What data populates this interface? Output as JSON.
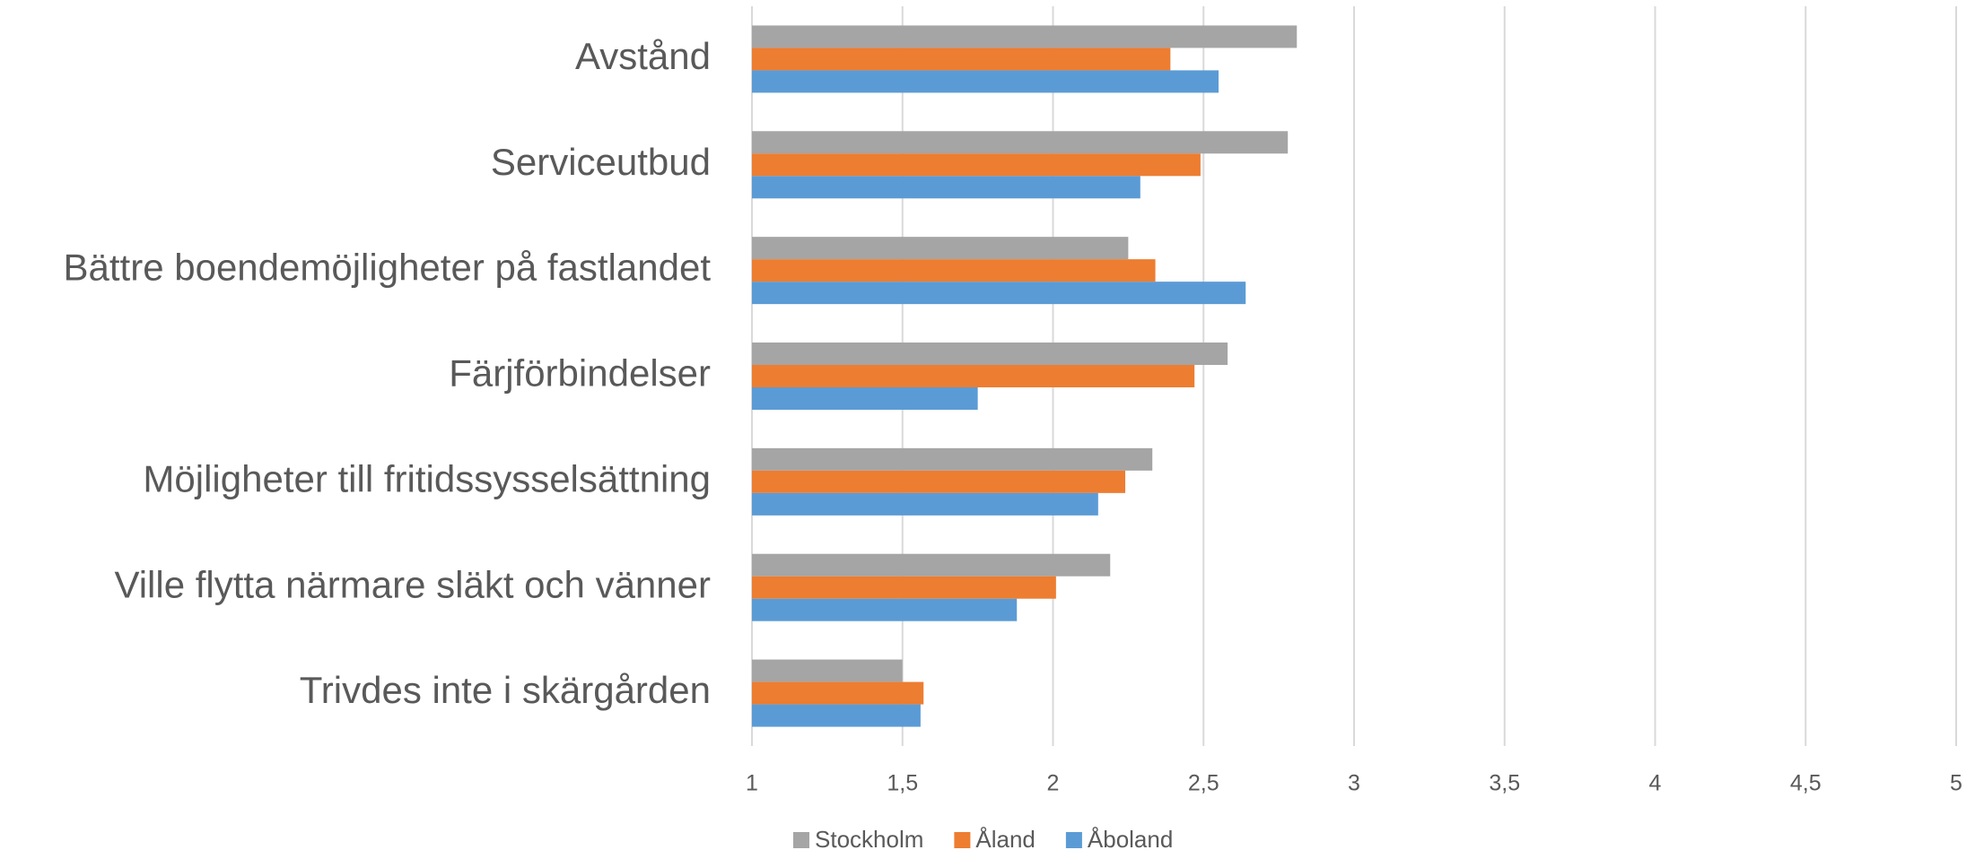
{
  "chart_data": {
    "type": "hbar",
    "categories": [
      "Avstånd",
      "Serviceutbud",
      "Bättre boendemöjligheter på fastlandet",
      "Färjförbindelser",
      "Möjligheter till fritidssysselsättning",
      "Ville flytta närmare släkt och vänner",
      "Trivdes inte i skärgården"
    ],
    "series": [
      {
        "name": "Stockholm",
        "color": "#a5a5a5",
        "values": [
          2.81,
          2.78,
          2.25,
          2.58,
          2.33,
          2.19,
          1.5
        ]
      },
      {
        "name": "Åland",
        "color": "#ed7d31",
        "values": [
          2.39,
          2.49,
          2.34,
          2.47,
          2.24,
          2.01,
          1.57
        ]
      },
      {
        "name": "Åboland",
        "color": "#5b9bd5",
        "values": [
          2.55,
          2.29,
          2.64,
          1.75,
          2.15,
          1.88,
          1.56
        ]
      }
    ],
    "xlim": [
      1,
      5
    ],
    "xticks": [
      1,
      {
        "value": 1.5,
        "label": "1,5"
      },
      2,
      {
        "value": 2.5,
        "label": "2,5"
      },
      3,
      {
        "value": 3.5,
        "label": "3,5"
      },
      4,
      {
        "value": 4.5,
        "label": "4,5"
      },
      5
    ],
    "grid": true,
    "legend": "bottom"
  }
}
